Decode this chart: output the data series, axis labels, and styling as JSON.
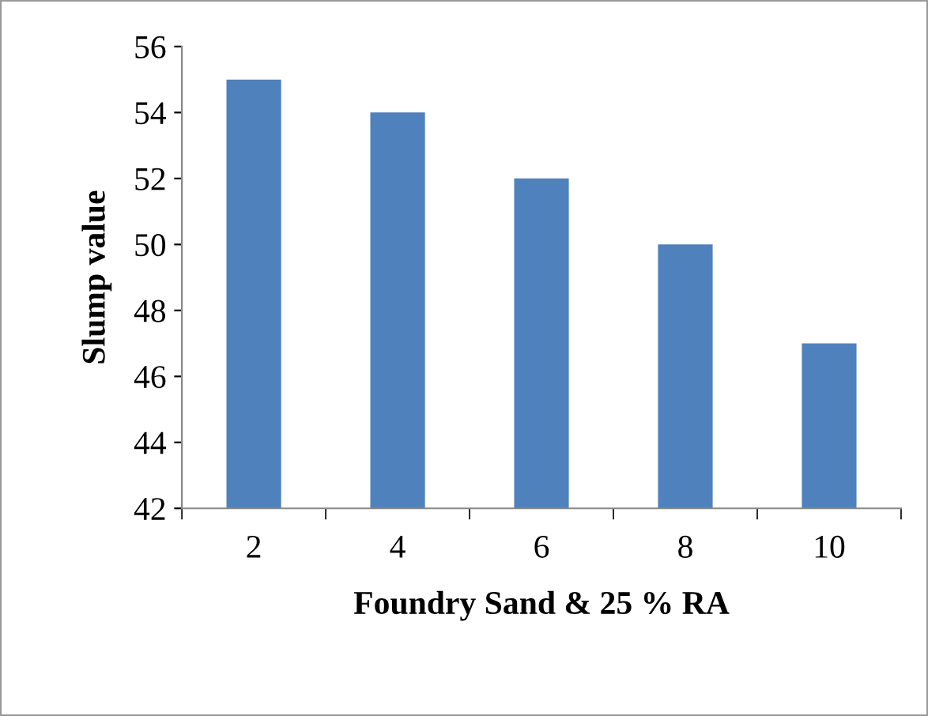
{
  "chart_data": {
    "type": "bar",
    "xlabel": "Foundry Sand & 25 % RA",
    "ylabel": "Slump value",
    "categories": [
      "2",
      "4",
      "6",
      "8",
      "10"
    ],
    "values": [
      55,
      54,
      52,
      50,
      47
    ],
    "color": "#4f81bd",
    "ylim": [
      42,
      56
    ],
    "yticks": [
      42,
      44,
      46,
      48,
      50,
      52,
      54,
      56
    ],
    "grid": false,
    "legend": false
  }
}
